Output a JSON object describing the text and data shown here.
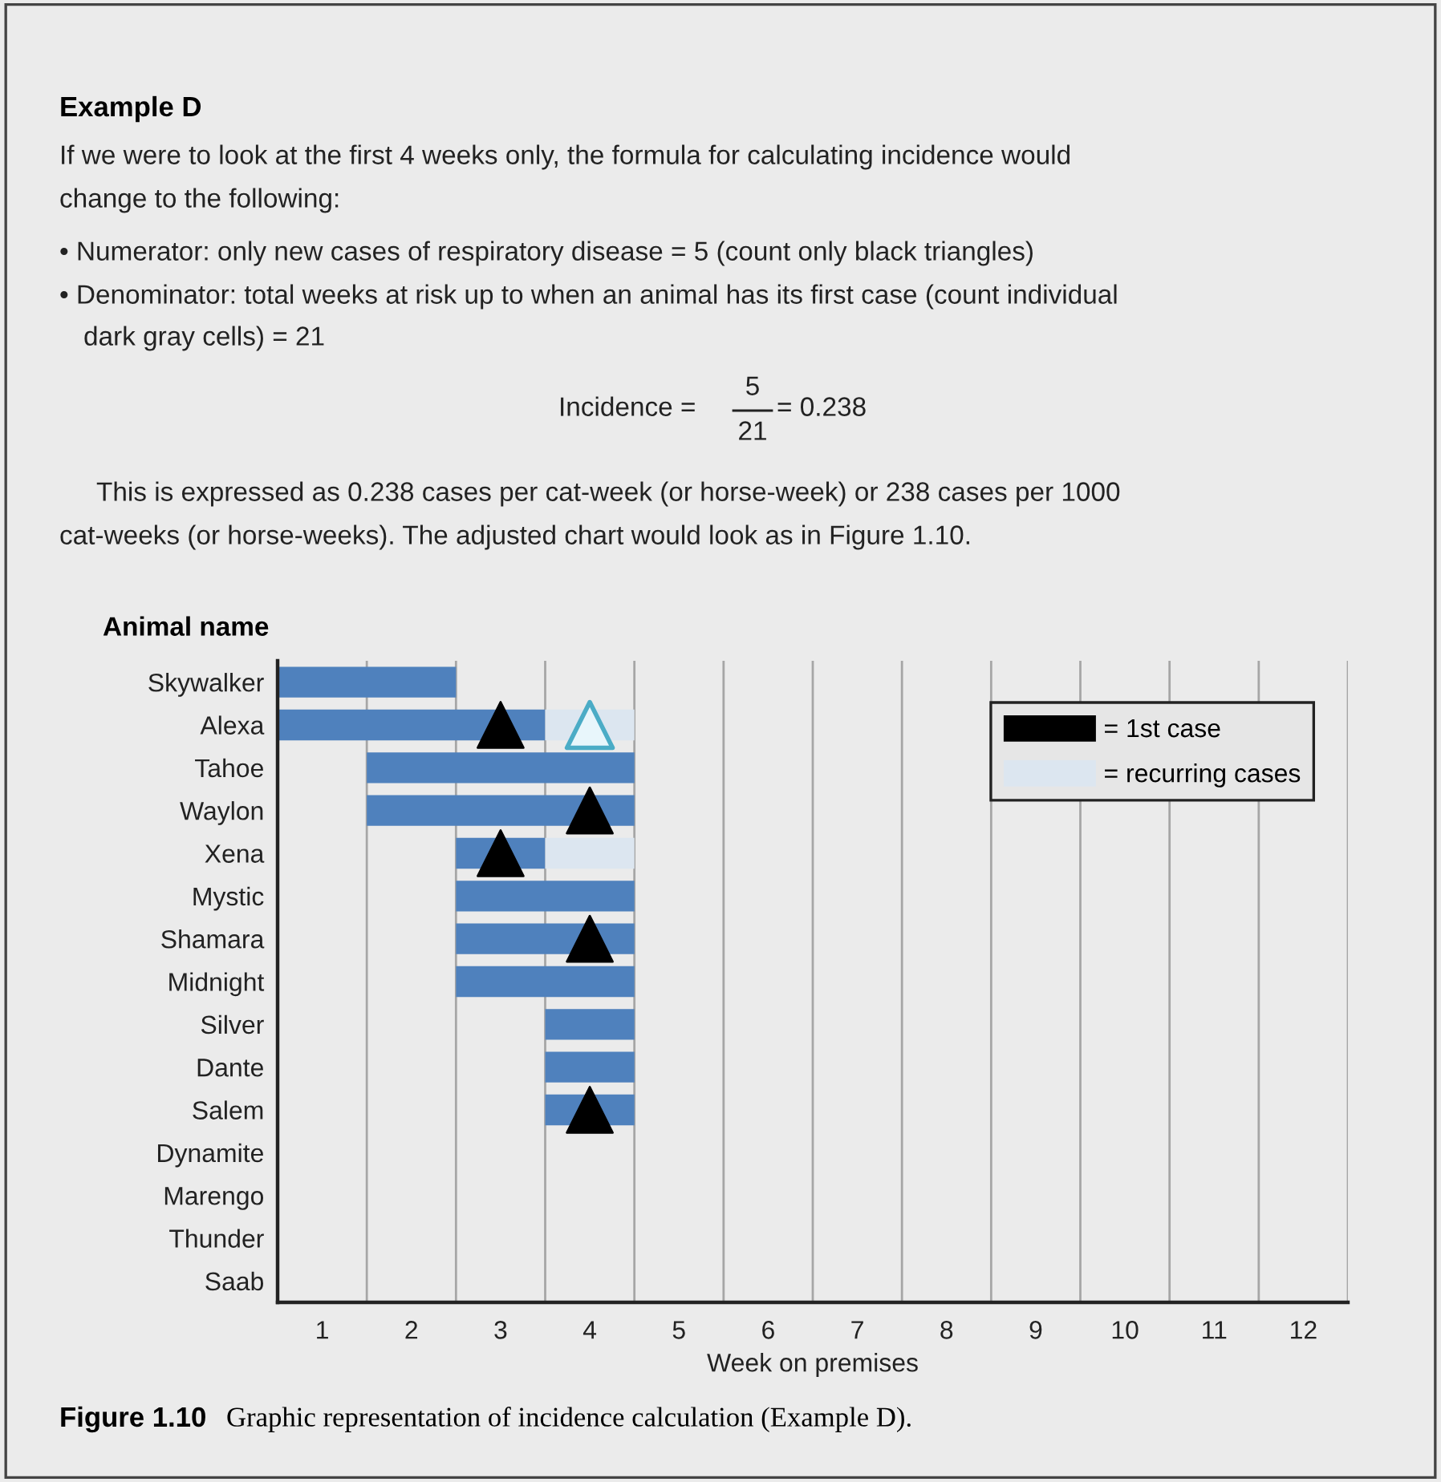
{
  "chart_data": {
    "type": "bar",
    "orientation": "horizontal",
    "title": "Example D",
    "ylabel": "Animal name",
    "xlabel": "Week on premises",
    "categories": [
      "Skywalker",
      "Alexa",
      "Tahoe",
      "Waylon",
      "Xena",
      "Mystic",
      "Shamara",
      "Midnight",
      "Silver",
      "Dante",
      "Salem",
      "Dynamite",
      "Marengo",
      "Thunder",
      "Saab"
    ],
    "series": [
      {
        "color": "#4f81bd",
        "base": [
          0.5,
          0.5,
          1.5,
          1.5,
          2.5,
          2.5,
          2.5,
          2.5,
          3.5,
          3.5,
          3.5,
          null,
          null,
          null,
          null
        ],
        "values": [
          2,
          3,
          3,
          3,
          1,
          2,
          2,
          2,
          1,
          1,
          1,
          null,
          null,
          null,
          null
        ]
      },
      {
        "type": "bar",
        "name": "= recurring cases",
        "color": "#dce6f0",
        "base": [
          null,
          3.5,
          null,
          null,
          3.5,
          null,
          null,
          null,
          null,
          null,
          null,
          null,
          null,
          null,
          null
        ],
        "values": [
          null,
          1,
          null,
          null,
          1,
          null,
          null,
          null,
          null,
          null,
          null,
          null,
          null,
          null,
          null
        ]
      },
      {
        "type": "scatter",
        "name": "= 1st case",
        "color": "#000000",
        "marker": "triangle",
        "values": [
          null,
          3,
          null,
          4,
          3,
          null,
          4,
          null,
          null,
          null,
          4,
          null,
          null,
          null,
          null
        ]
      },
      {
        "type": "scatter",
        "color": "#4bacc6",
        "marker": "triangle",
        "values": [
          null,
          4,
          null,
          null,
          null,
          null,
          null,
          null,
          null,
          null,
          null,
          null,
          null,
          null,
          null
        ]
      }
    ],
    "xlim": [
      0.5,
      12.5
    ],
    "xticks": [
      1,
      2,
      3,
      4,
      5,
      6,
      7,
      8,
      9,
      10,
      11,
      12
    ],
    "ref_lines": [
      {
        "axis": "x",
        "value": 1.5,
        "color": "#a6a6a6"
      },
      {
        "axis": "x",
        "value": 2.5,
        "color": "#a6a6a6"
      },
      {
        "axis": "x",
        "value": 3.5,
        "color": "#a6a6a6"
      },
      {
        "axis": "x",
        "value": 4.5,
        "color": "#a6a6a6"
      },
      {
        "axis": "x",
        "value": 5.5,
        "color": "#a6a6a6"
      },
      {
        "axis": "x",
        "value": 6.5,
        "color": "#a6a6a6"
      },
      {
        "axis": "x",
        "value": 7.5,
        "color": "#a6a6a6"
      },
      {
        "axis": "x",
        "value": 8.5,
        "color": "#a6a6a6"
      },
      {
        "axis": "x",
        "value": 9.5,
        "color": "#a6a6a6"
      },
      {
        "axis": "x",
        "value": 10.5,
        "color": "#a6a6a6"
      },
      {
        "axis": "x",
        "value": 11.5,
        "color": "#a6a6a6"
      },
      {
        "axis": "x",
        "value": 12.5,
        "color": "#a6a6a6"
      }
    ],
    "grid": false,
    "legend": "top right",
    "annotations": [
      "If we were to look at the first 4 weeks only, the formula for calculating incidence would",
      "change to the following:",
      "• Numerator: only new cases of respiratory disease = 5 (count only black triangles)",
      "• Denominator: total weeks at risk up to when an animal has its first case (count individual",
      "dark gray cells) = 21",
      "Incidence =",
      "5",
      "21",
      "= 0.238",
      "This is expressed as 0.238 cases per cat-week (or horse-week) or 238 cases per 1000",
      "cat-weeks (or horse-weeks). The adjusted chart would look as in Figure 1.10.",
      "Figure 1.10",
      "Graphic representation of incidence calculation (Example D)."
    ]
  }
}
